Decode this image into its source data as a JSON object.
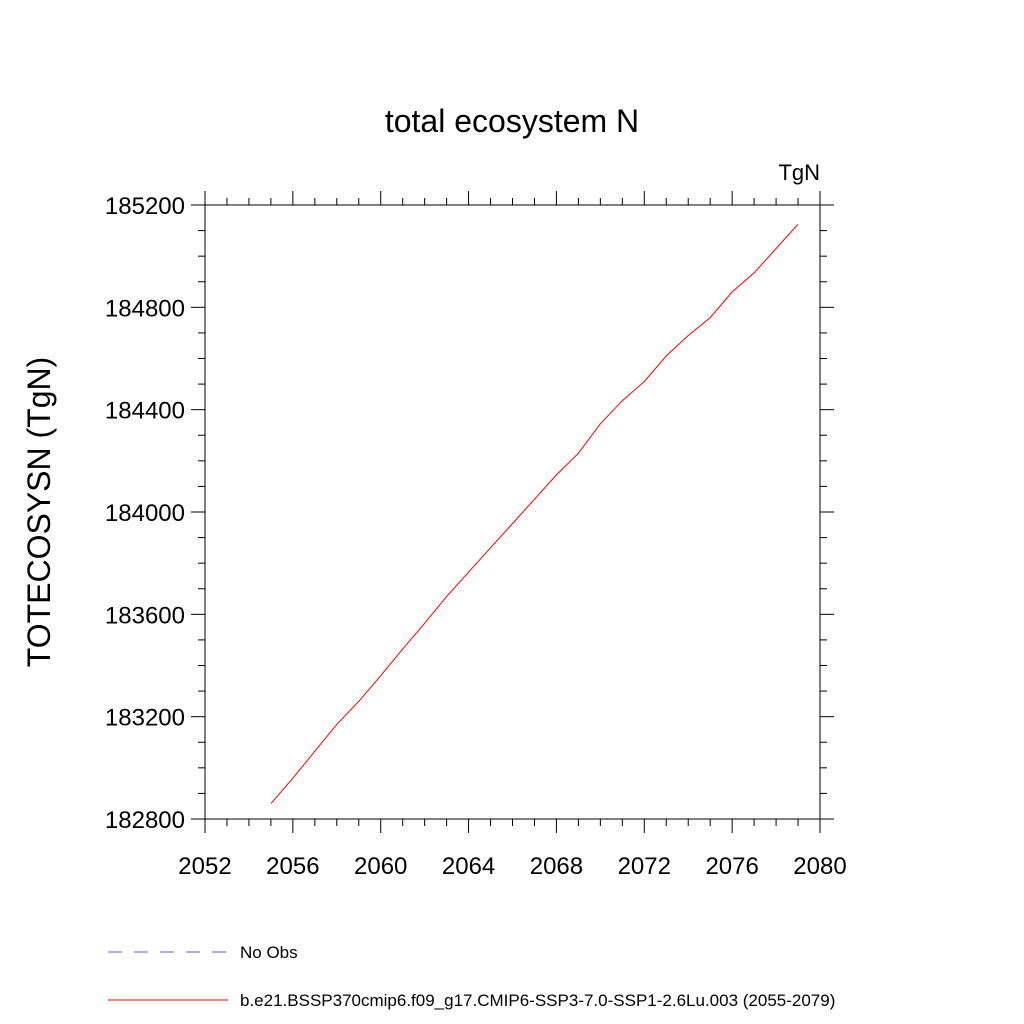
{
  "chart_data": {
    "type": "line",
    "title": "total ecosystem N",
    "units_label": "TgN",
    "ylabel": "TOTECOSYSN  (TgN)",
    "xlabel": "",
    "xlim": [
      2052,
      2080
    ],
    "ylim": [
      182800,
      185200
    ],
    "x_ticks": [
      2052,
      2056,
      2060,
      2064,
      2068,
      2072,
      2076,
      2080
    ],
    "y_ticks": [
      182800,
      183200,
      183600,
      184000,
      184400,
      184800,
      185200
    ],
    "grid": false,
    "legend_position": "bottom",
    "series": [
      {
        "name": "No Obs",
        "color": "#6a5acd",
        "dash": "dashed",
        "x": [],
        "y": []
      },
      {
        "name": "b.e21.BSSP370cmip6.f09_g17.CMIP6-SSP3-7.0-SSP1-2.6Lu.003 (2055-2079)",
        "color": "#ff0000",
        "dash": "solid",
        "x": [
          2055,
          2056,
          2057,
          2058,
          2059,
          2060,
          2061,
          2062,
          2063,
          2064,
          2065,
          2066,
          2067,
          2068,
          2069,
          2070,
          2071,
          2072,
          2073,
          2074,
          2075,
          2076,
          2077,
          2078,
          2079
        ],
        "y": [
          182860,
          182960,
          183065,
          183170,
          183260,
          183360,
          183465,
          183565,
          183670,
          183765,
          183860,
          183955,
          184050,
          184145,
          184230,
          184345,
          184435,
          184510,
          184610,
          184690,
          184760,
          184860,
          184935,
          185030,
          185125
        ]
      }
    ]
  }
}
